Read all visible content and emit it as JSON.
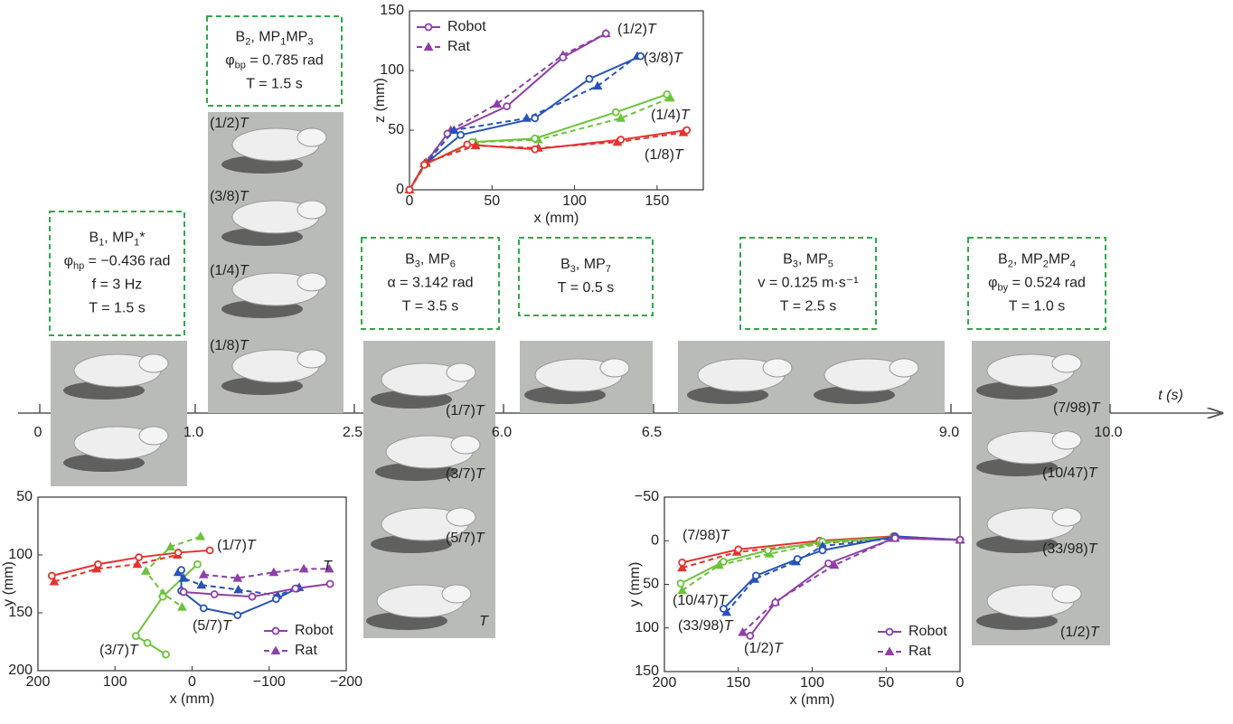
{
  "timeline": {
    "label": "t (s)",
    "ticks": [
      0,
      {
        "value": 1,
        "label": "1.0"
      },
      2.5,
      {
        "value": 6,
        "label": "6.0"
      },
      6.5,
      {
        "value": 9,
        "label": "9.0"
      },
      {
        "value": 10,
        "label": "10.0"
      }
    ]
  },
  "phases": [
    {
      "lines": [
        [
          "B",
          "1",
          ", MP",
          "1",
          "*"
        ],
        [
          "φ",
          "hp",
          " = −0.436 rad"
        ],
        [
          "f = 3 Hz"
        ],
        [
          "T = 1.5 s"
        ]
      ],
      "frames": []
    },
    {
      "lines": [
        [
          "B",
          "2",
          ", MP",
          "1",
          "MP",
          "3"
        ],
        [
          "φ",
          "bp",
          " = 0.785 rad"
        ],
        [
          "T = 1.5 s"
        ]
      ],
      "frames": [
        "(1/2)T",
        "(3/8)T",
        "(1/4)T",
        "(1/8)T"
      ]
    },
    {
      "lines": [
        [
          "B",
          "3",
          ", MP",
          "6"
        ],
        [
          "α = 3.142 rad"
        ],
        [
          "T = 3.5 s"
        ]
      ],
      "frames": [
        "(1/7)T",
        "(3/7)T",
        "(5/7)T",
        "T"
      ]
    },
    {
      "lines": [
        [
          "B",
          "3",
          ", MP",
          "7"
        ],
        [
          "T = 0.5 s"
        ]
      ],
      "frames": []
    },
    {
      "lines": [
        [
          "B",
          "3",
          ", MP",
          "5"
        ],
        [
          "v = 0.125 m·s⁻¹"
        ],
        [
          "T = 2.5 s"
        ]
      ],
      "frames": []
    },
    {
      "lines": [
        [
          "B",
          "2",
          ", MP",
          "2",
          "MP",
          "4"
        ],
        [
          "φ",
          "by",
          " = 0.524 rad"
        ],
        [
          "T = 1.0 s"
        ]
      ],
      "frames": [
        "(7/98)T",
        "(10/47)T",
        "(33/98)T",
        "(1/2)T"
      ]
    }
  ],
  "chart_data": [
    {
      "type": "line",
      "xlabel": "x (mm)",
      "ylabel": "z (mm)",
      "xlim": [
        0,
        178
      ],
      "ylim": [
        0,
        150
      ],
      "xticks": [
        0,
        50,
        100,
        150
      ],
      "yticks": [
        0,
        50,
        100,
        150
      ],
      "legend_position": "upper left",
      "legend": [
        {
          "name": "Robot",
          "marker": "circle",
          "color": "#8e3fa8"
        },
        {
          "name": "Rat",
          "marker": "triangle",
          "color": "#8e3fa8"
        }
      ],
      "curves": [
        {
          "label": "(1/2)T",
          "color": "#8e3fa8",
          "robot": {
            "x": [
              0,
              9,
              23,
              59,
              93,
              119
            ],
            "values": [
              0,
              21,
              47,
              70,
              111,
              131
            ]
          },
          "rat": {
            "x": [
              0,
              9,
              25,
              53,
              93,
              119
            ],
            "values": [
              0,
              22,
              50,
              72,
              113,
              131
            ]
          }
        },
        {
          "label": "(3/8)T",
          "color": "#2753b8",
          "robot": {
            "x": [
              0,
              9,
              31,
              76,
              109,
              140
            ],
            "values": [
              0,
              21,
              46,
              60,
              93,
              112
            ]
          },
          "rat": {
            "x": [
              0,
              10,
              27,
              71,
              114,
              138
            ],
            "values": [
              0,
              22,
              50,
              60,
              87,
              112
            ]
          }
        },
        {
          "label": "(1/4)T",
          "color": "#6bc43a",
          "robot": {
            "x": [
              0,
              9,
              38,
              76,
              125,
              156
            ],
            "values": [
              0,
              21,
              40,
              43,
              65,
              80
            ]
          },
          "rat": {
            "x": [
              0,
              10,
              40,
              78,
              128,
              158
            ],
            "values": [
              0,
              22,
              40,
              42,
              60,
              77
            ]
          }
        },
        {
          "label": "(1/8)T",
          "color": "#e5322d",
          "robot": {
            "x": [
              0,
              9,
              35,
              76,
              128,
              168
            ],
            "values": [
              0,
              21,
              38,
              34,
              42,
              50
            ]
          },
          "rat": {
            "x": [
              0,
              10,
              40,
              78,
              126,
              166
            ],
            "values": [
              0,
              23,
              37,
              35,
              40,
              48
            ]
          }
        }
      ]
    },
    {
      "type": "line",
      "xlabel": "x (mm)",
      "ylabel": "y (mm)",
      "xlim": [
        200,
        -200
      ],
      "ylim": [
        200,
        50
      ],
      "xticks": [
        200,
        100,
        0,
        {
          "value": -100,
          "label": "−100"
        },
        {
          "value": -200,
          "label": "−200"
        }
      ],
      "yticks": [
        50,
        100,
        150,
        200
      ],
      "legend_position": "lower right",
      "legend": [
        {
          "name": "Robot",
          "marker": "circle",
          "color": "#8e3fa8"
        },
        {
          "name": "Rat",
          "marker": "triangle",
          "color": "#8e3fa8"
        }
      ],
      "curves": [
        {
          "label": "(1/7)T",
          "color": "#e5322d",
          "robot": {
            "x": [
              182,
              122,
              69,
              18,
              -23
            ],
            "values": [
              118,
              108,
              102,
              98,
              96
            ]
          },
          "rat": {
            "x": [
              179,
              124,
              71,
              19
            ],
            "values": [
              123,
              112,
              108,
              100
            ]
          }
        },
        {
          "label": "(3/7)T",
          "color": "#6bc43a",
          "robot": {
            "x": [
              -7,
              38,
              73,
              58,
              34
            ],
            "values": [
              108,
              136,
              170,
              176,
              186
            ]
          },
          "rat": {
            "x": [
              -11,
              28,
              60,
              38,
              13
            ],
            "values": [
              84,
              93,
              114,
              133,
              145
            ]
          }
        },
        {
          "label": "(5/7)T",
          "color": "#2753b8",
          "robot": {
            "x": [
              14,
              14,
              -15,
              -59,
              -109,
              -136
            ],
            "values": [
              113,
              131,
              146,
              152,
              138,
              129
            ]
          },
          "rat": {
            "x": [
              18,
              11,
              -12,
              -60,
              -111,
              -139
            ],
            "values": [
              115,
              120,
              126,
              130,
              135,
              128
            ]
          }
        },
        {
          "label": "T",
          "color": "#8e3fa8",
          "robot": {
            "x": [
              11,
              -29,
              -78,
              -134,
              -179
            ],
            "values": [
              132,
              134,
              136,
              129,
              125
            ]
          },
          "rat": {
            "x": [
              -15,
              -59,
              -106,
              -145,
              -178
            ],
            "values": [
              117,
              120,
              115,
              112,
              112
            ]
          }
        }
      ]
    },
    {
      "type": "line",
      "xlabel": "x (mm)",
      "ylabel": "y (mm)",
      "xlim": [
        200,
        0
      ],
      "ylim": [
        150,
        -50
      ],
      "xticks": [
        200,
        150,
        100,
        50,
        0
      ],
      "yticks": [
        {
          "value": -50,
          "label": "−50"
        },
        0,
        50,
        100,
        150
      ],
      "legend_position": "lower right",
      "legend": [
        {
          "name": "Robot",
          "marker": "circle",
          "color": "#8e3fa8"
        },
        {
          "name": "Rat",
          "marker": "triangle",
          "color": "#8e3fa8"
        }
      ],
      "curves": [
        {
          "label": "(7/98)T",
          "color": "#e5322d",
          "robot": {
            "x": [
              188,
              150,
              95,
              45,
              0
            ],
            "values": [
              25,
              10,
              0,
              -5,
              -1
            ]
          },
          "rat": {
            "x": [
              188,
              151,
              94,
              47,
              0
            ],
            "values": [
              31,
              13,
              3,
              -3,
              -1
            ]
          }
        },
        {
          "label": "(10/47)T",
          "color": "#6bc43a",
          "robot": {
            "x": [
              189,
              160,
              130,
              93,
              45,
              0
            ],
            "values": [
              49,
              24,
              11,
              1,
              -4,
              -1
            ]
          },
          "rat": {
            "x": [
              188,
              163,
              129,
              94,
              47,
              0
            ],
            "values": [
              57,
              28,
              15,
              3,
              -3,
              -1
            ]
          }
        },
        {
          "label": "(33/98)T",
          "color": "#2753b8",
          "robot": {
            "x": [
              160,
              138,
              110,
              93,
              44,
              0
            ],
            "values": [
              78,
              40,
              21,
              11,
              -5,
              -1
            ]
          },
          "rat": {
            "x": [
              158,
              139,
              111,
              93,
              44,
              0
            ],
            "values": [
              82,
              44,
              24,
              6,
              -3,
              -1
            ]
          }
        },
        {
          "label": "(1/2)T",
          "color": "#8e3fa8",
          "robot": {
            "x": [
              142,
              125,
              89,
              44,
              0
            ],
            "values": [
              109,
              71,
              26,
              -3,
              -1
            ]
          },
          "rat": {
            "x": [
              147,
              125,
              85,
              45,
              0
            ],
            "values": [
              105,
              70,
              28,
              -3,
              -1
            ]
          }
        }
      ]
    }
  ]
}
